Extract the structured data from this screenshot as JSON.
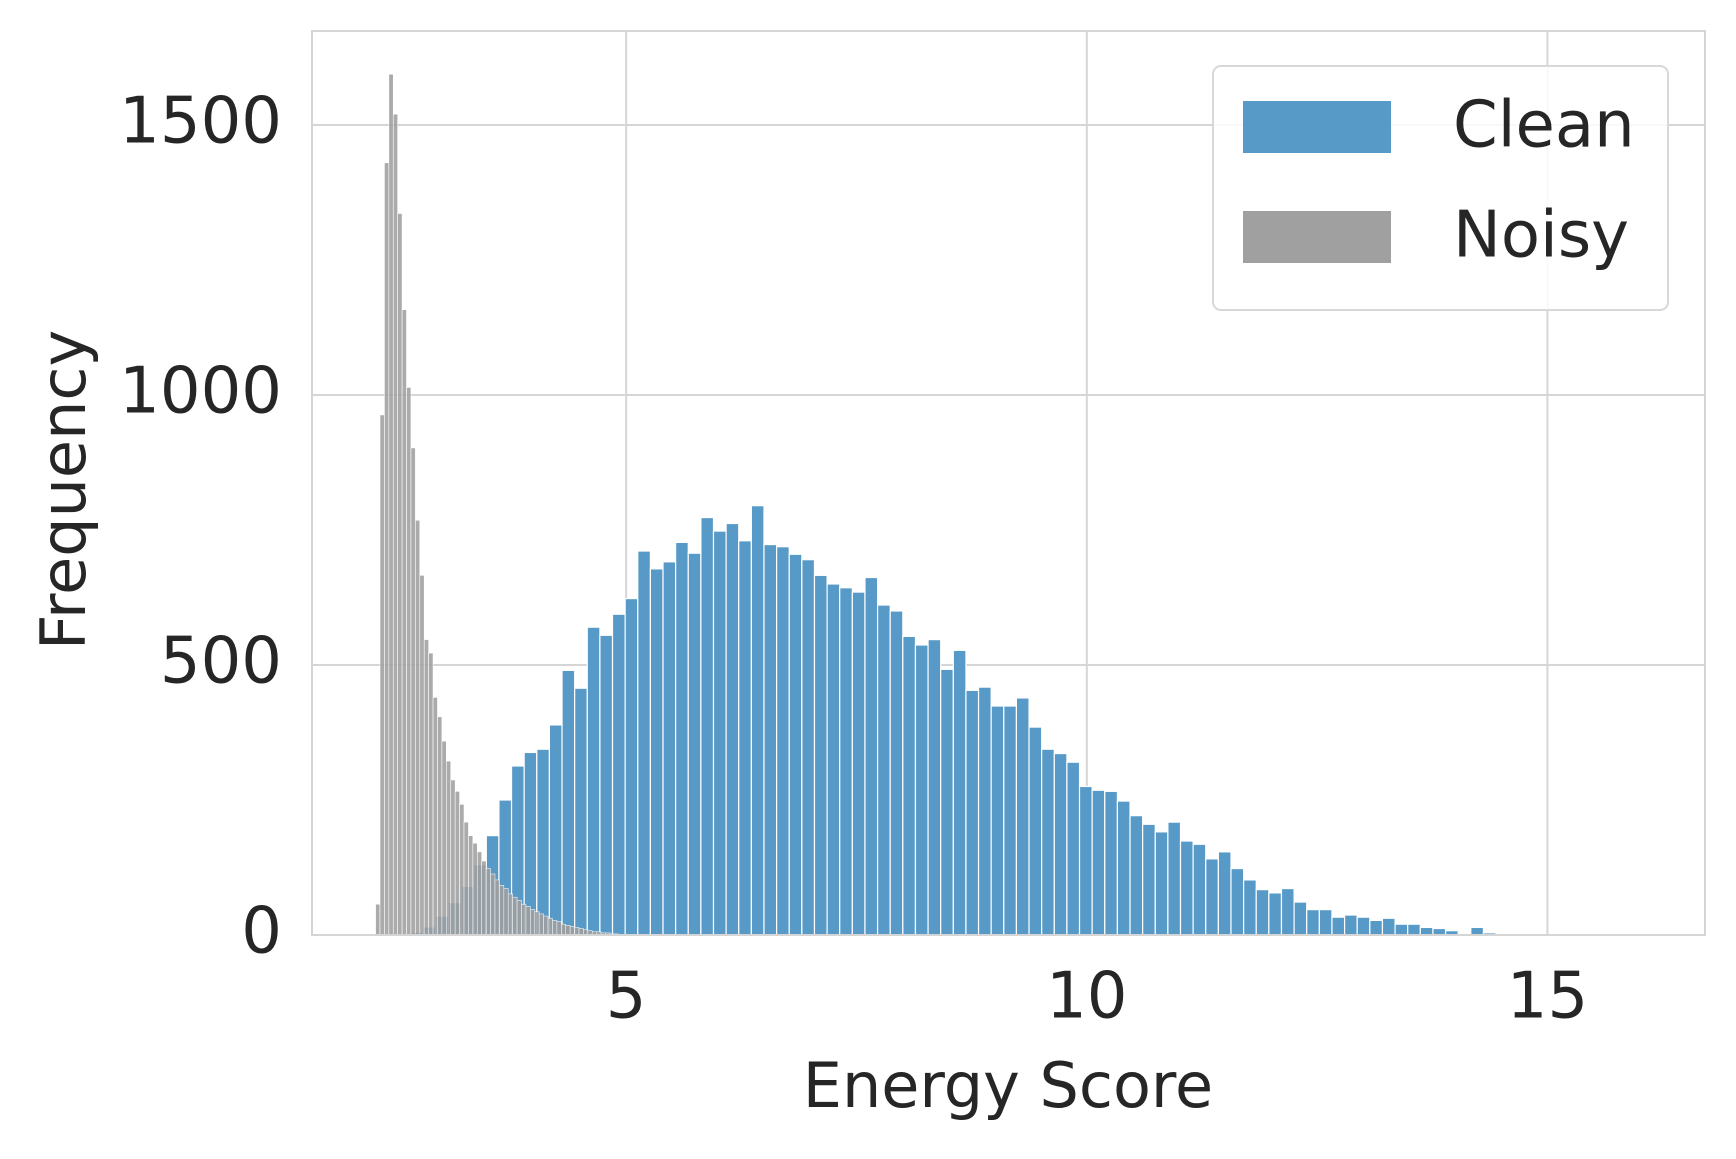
{
  "chart_data": {
    "type": "histogram",
    "xlabel": "Energy Score",
    "ylabel": "Frequency",
    "xlim": [
      1.59,
      16.71
    ],
    "ylim": [
      0,
      1674
    ],
    "xticks": [
      5,
      10,
      15
    ],
    "yticks": [
      0,
      500,
      1000,
      1500
    ],
    "grid": true,
    "legend": "upper right",
    "series": [
      {
        "name": "Clean",
        "color": "#5799c7",
        "bins": [
          2.66,
          2.797,
          2.934,
          3.071,
          3.208,
          3.345,
          3.482,
          3.619,
          3.756,
          3.893,
          4.03,
          4.167,
          4.304,
          4.441,
          4.578,
          4.715,
          4.852,
          4.989,
          5.126,
          5.263,
          5.4,
          5.537,
          5.674,
          5.811,
          5.948,
          6.085,
          6.222,
          6.359,
          6.496,
          6.633,
          6.77,
          6.907,
          7.044,
          7.181,
          7.318,
          7.455,
          7.592,
          7.729,
          7.866,
          8.003,
          8.14,
          8.277,
          8.414,
          8.551,
          8.688,
          8.825,
          8.962,
          9.099,
          9.236,
          9.373,
          9.51,
          9.647,
          9.784,
          9.921,
          10.058,
          10.195,
          10.332,
          10.469,
          10.606,
          10.743,
          10.88,
          11.017,
          11.154,
          11.291,
          11.428,
          11.565,
          11.702,
          11.839,
          11.976,
          12.113,
          12.25,
          12.387,
          12.524,
          12.661,
          12.798,
          12.935,
          13.072,
          13.209,
          13.346,
          13.483,
          13.62,
          13.757,
          13.894,
          14.031,
          14.168,
          14.305,
          14.442,
          14.579,
          14.716
        ],
        "values": [
          5,
          15,
          35,
          60,
          90,
          130,
          184,
          250,
          313,
          338,
          344,
          389,
          490,
          457,
          570,
          555,
          594,
          623,
          711,
          678,
          691,
          727,
          707,
          773,
          748,
          762,
          730,
          795,
          723,
          719,
          705,
          695,
          666,
          650,
          643,
          635,
          662,
          611,
          600,
          553,
          537,
          547,
          492,
          527,
          453,
          459,
          424,
          424,
          439,
          385,
          344,
          336,
          320,
          275,
          268,
          266,
          248,
          221,
          205,
          191,
          209,
          174,
          168,
          141,
          154,
          123,
          102,
          84,
          78,
          86,
          61,
          47,
          47,
          33,
          37,
          33,
          27,
          31,
          20,
          20,
          14,
          12,
          8,
          2,
          14,
          4,
          2,
          1
        ]
      },
      {
        "name": "Noisy",
        "color": "#a0a0a0",
        "bins": [
          2.28,
          2.328,
          2.376,
          2.424,
          2.472,
          2.52,
          2.568,
          2.616,
          2.664,
          2.712,
          2.76,
          2.808,
          2.856,
          2.904,
          2.952,
          3,
          3.048,
          3.096,
          3.144,
          3.192,
          3.24,
          3.288,
          3.336,
          3.384,
          3.432,
          3.48,
          3.528,
          3.576,
          3.624,
          3.672,
          3.72,
          3.768,
          3.816,
          3.864,
          3.912,
          3.96,
          4.008,
          4.056,
          4.104,
          4.152,
          4.2,
          4.248,
          4.296,
          4.344,
          4.392,
          4.44,
          4.488,
          4.536,
          4.584,
          4.632,
          4.68,
          4.728,
          4.776,
          4.824,
          4.872,
          4.92
        ],
        "values": [
          57,
          963,
          1430,
          1594,
          1520,
          1336,
          1158,
          1014,
          902,
          768,
          666,
          547,
          522,
          440,
          404,
          359,
          322,
          287,
          266,
          242,
          209,
          184,
          170,
          154,
          137,
          123,
          113,
          102,
          92,
          86,
          76,
          70,
          64,
          57,
          53,
          47,
          43,
          39,
          35,
          31,
          27,
          25,
          20,
          18,
          16,
          14,
          12,
          10,
          8,
          6,
          6,
          4,
          4,
          2,
          2
        ]
      }
    ]
  }
}
